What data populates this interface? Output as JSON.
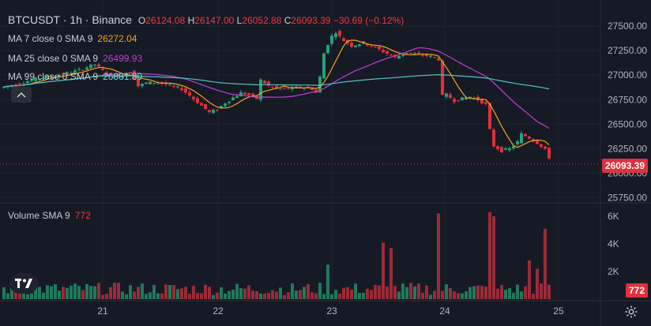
{
  "header": {
    "symbol": "BTCUSDT",
    "sep1": "·",
    "interval": "1h",
    "sep2": "·",
    "exchange": "Binance",
    "open_label": "O",
    "open": "26124.08",
    "high_label": "H",
    "high": "26147.00",
    "low_label": "L",
    "low": "26052.88",
    "close_label": "C",
    "close": "26093.39",
    "change": "−30.69 (−0.12%)"
  },
  "indicators": [
    {
      "label": "MA 7 close 0 SMA 9",
      "value": "26272.04",
      "color": "#f7a21b"
    },
    {
      "label": "MA 25 close 0 SMA 9",
      "value": "26499.93",
      "color": "#c23fd4"
    },
    {
      "label": "MA 99 close 0 SMA 9",
      "value": "26881.80",
      "color": "#4fc3c0"
    }
  ],
  "volume_indicator": {
    "label": "Volume SMA 9",
    "value": "772",
    "color": "#f23645"
  },
  "price_axis": {
    "ticks": [
      "27500.00",
      "27250.00",
      "27000.00",
      "26750.00",
      "26500.00",
      "26250.00",
      "26000.00",
      "25750.00"
    ],
    "current_price": "26093.39"
  },
  "volume_axis": {
    "ticks": [
      "6K",
      "4K",
      "2K"
    ],
    "current_volume": "772"
  },
  "time_axis": {
    "ticks": [
      "21",
      "22",
      "23",
      "24",
      "25"
    ]
  },
  "colors": {
    "up": "#26a17b",
    "down": "#e0303c",
    "background": "#161a25"
  },
  "icons": {
    "collapse": "chevron-up-icon",
    "logo": "tradingview-logo-icon",
    "settings": "gear-icon"
  }
}
